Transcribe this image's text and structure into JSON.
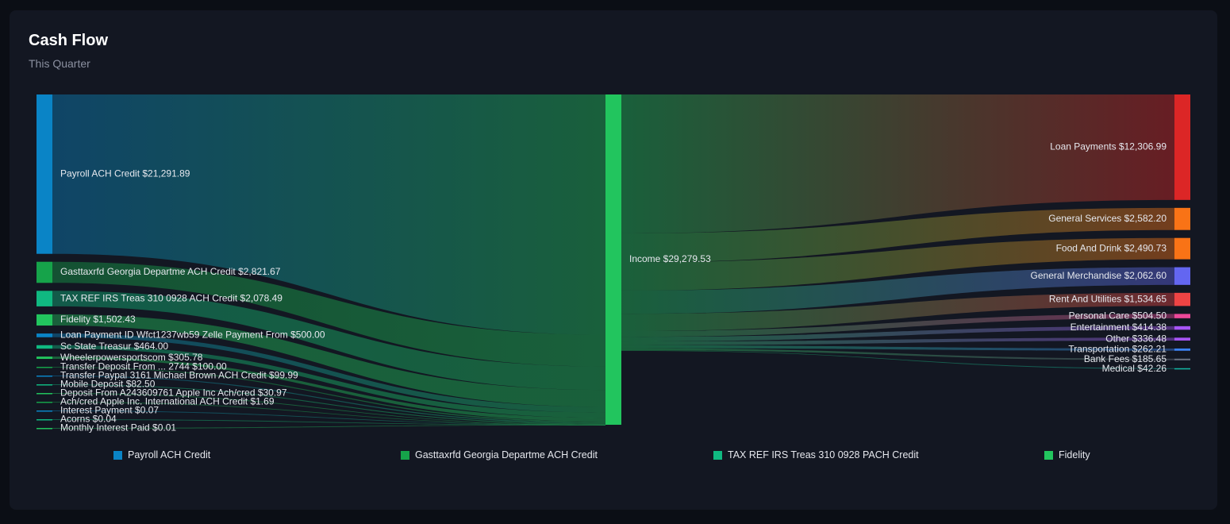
{
  "header": {
    "title": "Cash Flow",
    "subtitle": "This Quarter"
  },
  "legend": {
    "items": [
      {
        "label": "Payroll ACH Credit",
        "color": "#0a84c6"
      },
      {
        "label": "Gasttaxrfd Georgia Departme ACH Credit",
        "color": "#16a34a"
      },
      {
        "label": "TAX REF IRS Treas 310 0928 PACH Credit",
        "color": "#10b981"
      },
      {
        "label": "Fidelity",
        "color": "#22c55e"
      }
    ]
  },
  "chart_data": {
    "type": "sankey",
    "title": "Cash Flow",
    "subtitle": "This Quarter",
    "center": {
      "name": "Income",
      "label": "Income $29,279.53",
      "value": 29279.53,
      "color": "#22c55e"
    },
    "sources": [
      {
        "name": "Payroll ACH Credit",
        "label": "Payroll ACH Credit $21,291.89",
        "value": 21291.89,
        "color": "#0a84c6"
      },
      {
        "name": "Gasttaxrfd Georgia Departme ACH Credit",
        "label": "Gasttaxrfd Georgia Departme ACH Credit $2,821.67",
        "value": 2821.67,
        "color": "#16a34a"
      },
      {
        "name": "TAX REF IRS Treas 310 0928 ACH Credit",
        "label": "TAX REF IRS Treas 310 0928 ACH Credit $2,078.49",
        "value": 2078.49,
        "color": "#10b981"
      },
      {
        "name": "Fidelity",
        "label": "Fidelity $1,502.43",
        "value": 1502.43,
        "color": "#22c55e"
      },
      {
        "name": "Loan Payment ID Wfct1237wb59 Zelle Payment From",
        "label": "Loan Payment ID Wfct1237wb59 Zelle Payment From $500.00",
        "value": 500.0,
        "color": "#0a84c6"
      },
      {
        "name": "Sc State Treasur",
        "label": "Sc State Treasur $464.00",
        "value": 464.0,
        "color": "#10b981"
      },
      {
        "name": "Wheelerpowersportscom",
        "label": "Wheelerpowersportscom $305.78",
        "value": 305.78,
        "color": "#22c55e"
      },
      {
        "name": "Transfer Deposit From ... 2744",
        "label": "Transfer Deposit From ... 2744 $100.00",
        "value": 100.0,
        "color": "#16a34a"
      },
      {
        "name": "Transfer Paypal 3161 Michael Brown ACH Credit",
        "label": "Transfer Paypal 3161 Michael Brown ACH Credit $99.99",
        "value": 99.99,
        "color": "#0a84c6"
      },
      {
        "name": "Mobile Deposit",
        "label": "Mobile Deposit $82.50",
        "value": 82.5,
        "color": "#10b981"
      },
      {
        "name": "Deposit From A243609761 Apple Inc Ach/cred",
        "label": "Deposit From A243609761 Apple Inc Ach/cred $30.97",
        "value": 30.97,
        "color": "#22c55e"
      },
      {
        "name": "Ach/cred Apple Inc. International ACH Credit",
        "label": "Ach/cred Apple Inc. International ACH Credit $1.69",
        "value": 1.69,
        "color": "#16a34a"
      },
      {
        "name": "Interest Payment",
        "label": "Interest Payment $0.07",
        "value": 0.07,
        "color": "#0a84c6"
      },
      {
        "name": "Acorns",
        "label": "Acorns $0.04",
        "value": 0.04,
        "color": "#10b981"
      },
      {
        "name": "Monthly Interest Paid",
        "label": "Monthly Interest Paid $0.01",
        "value": 0.01,
        "color": "#22c55e"
      }
    ],
    "targets": [
      {
        "name": "Loan Payments",
        "label": "Loan Payments $12,306.99",
        "value": 12306.99,
        "color": "#dc2626"
      },
      {
        "name": "General Services",
        "label": "General Services $2,582.20",
        "value": 2582.2,
        "color": "#f97316"
      },
      {
        "name": "Food And Drink",
        "label": "Food And Drink $2,490.73",
        "value": 2490.73,
        "color": "#f97316"
      },
      {
        "name": "General Merchandise",
        "label": "General Merchandise $2,062.60",
        "value": 2062.6,
        "color": "#6366f1"
      },
      {
        "name": "Rent And Utilities",
        "label": "Rent And Utilities $1,534.65",
        "value": 1534.65,
        "color": "#ef4444"
      },
      {
        "name": "Personal Care",
        "label": "Personal Care $504.50",
        "value": 504.5,
        "color": "#ec4899"
      },
      {
        "name": "Entertainment",
        "label": "Entertainment $414.38",
        "value": 414.38,
        "color": "#a855f7"
      },
      {
        "name": "Other",
        "label": "Other $336.48",
        "value": 336.48,
        "color": "#a855f7"
      },
      {
        "name": "Transportation",
        "label": "Transportation $262.21",
        "value": 262.21,
        "color": "#3b82f6"
      },
      {
        "name": "Bank Fees",
        "label": "Bank Fees $185.65",
        "value": 185.65,
        "color": "#6b7280"
      },
      {
        "name": "Medical",
        "label": "Medical $42.26",
        "value": 42.26,
        "color": "#14b8a6"
      }
    ]
  }
}
